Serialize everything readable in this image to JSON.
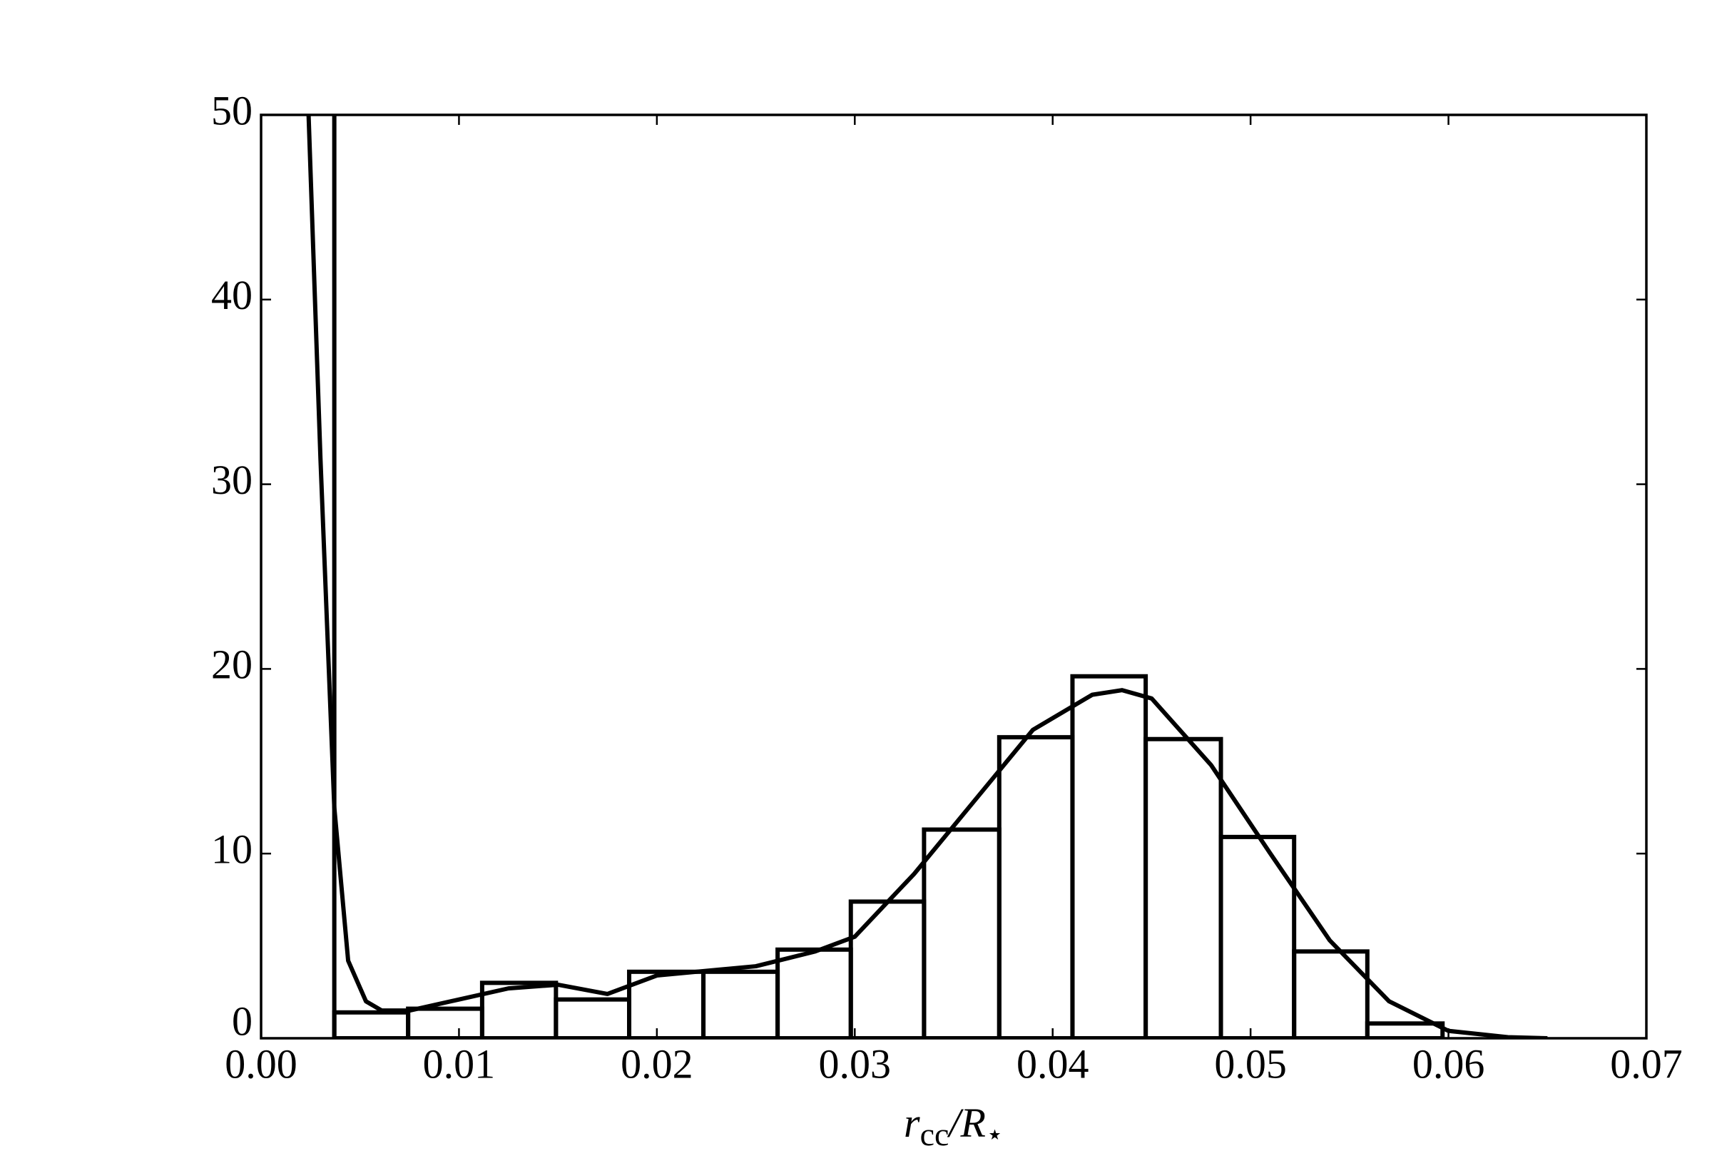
{
  "chart_data": {
    "type": "histogram",
    "x_label": {
      "main": "r",
      "sub": "cc",
      "rest": "/R",
      "sub2": "⋆"
    },
    "bins": [
      0.0037,
      0.00743,
      0.01117,
      0.0149,
      0.0186,
      0.02235,
      0.0261,
      0.0298,
      0.0335,
      0.0373,
      0.041,
      0.0447,
      0.0485,
      0.0522,
      0.0559,
      0.0597
    ],
    "counts": [
      1.4,
      1.6,
      3.0,
      2.1,
      3.6,
      3.6,
      4.8,
      7.4,
      11.3,
      16.3,
      19.6,
      16.2,
      10.9,
      4.7,
      0.8
    ],
    "vline_x": 0.0037,
    "kde": {
      "x": [
        0.0024,
        0.003,
        0.0037,
        0.0044,
        0.0053,
        0.0061,
        0.0075,
        0.01,
        0.0125,
        0.015,
        0.0175,
        0.02,
        0.025,
        0.028,
        0.03,
        0.033,
        0.036,
        0.039,
        0.042,
        0.0435,
        0.045,
        0.048,
        0.051,
        0.054,
        0.057,
        0.06,
        0.063,
        0.065
      ],
      "values": [
        50,
        31.4,
        12.5,
        4.2,
        2.0,
        1.5,
        1.5,
        2.1,
        2.7,
        2.9,
        2.4,
        3.4,
        3.9,
        4.7,
        5.5,
        8.9,
        12.8,
        16.7,
        18.6,
        18.85,
        18.4,
        14.8,
        10.0,
        5.3,
        2.0,
        0.4,
        0.06,
        0
      ]
    },
    "color": "#000000",
    "xlim": [
      0,
      0.07
    ],
    "ylim": [
      0,
      50
    ],
    "xticks": [
      {
        "value": 0,
        "label": "0.00"
      },
      0.01,
      0.02,
      0.03,
      0.04,
      0.05,
      0.06,
      0.07
    ],
    "yticks": [
      0,
      10,
      20,
      30,
      40,
      50
    ],
    "grid": false
  }
}
